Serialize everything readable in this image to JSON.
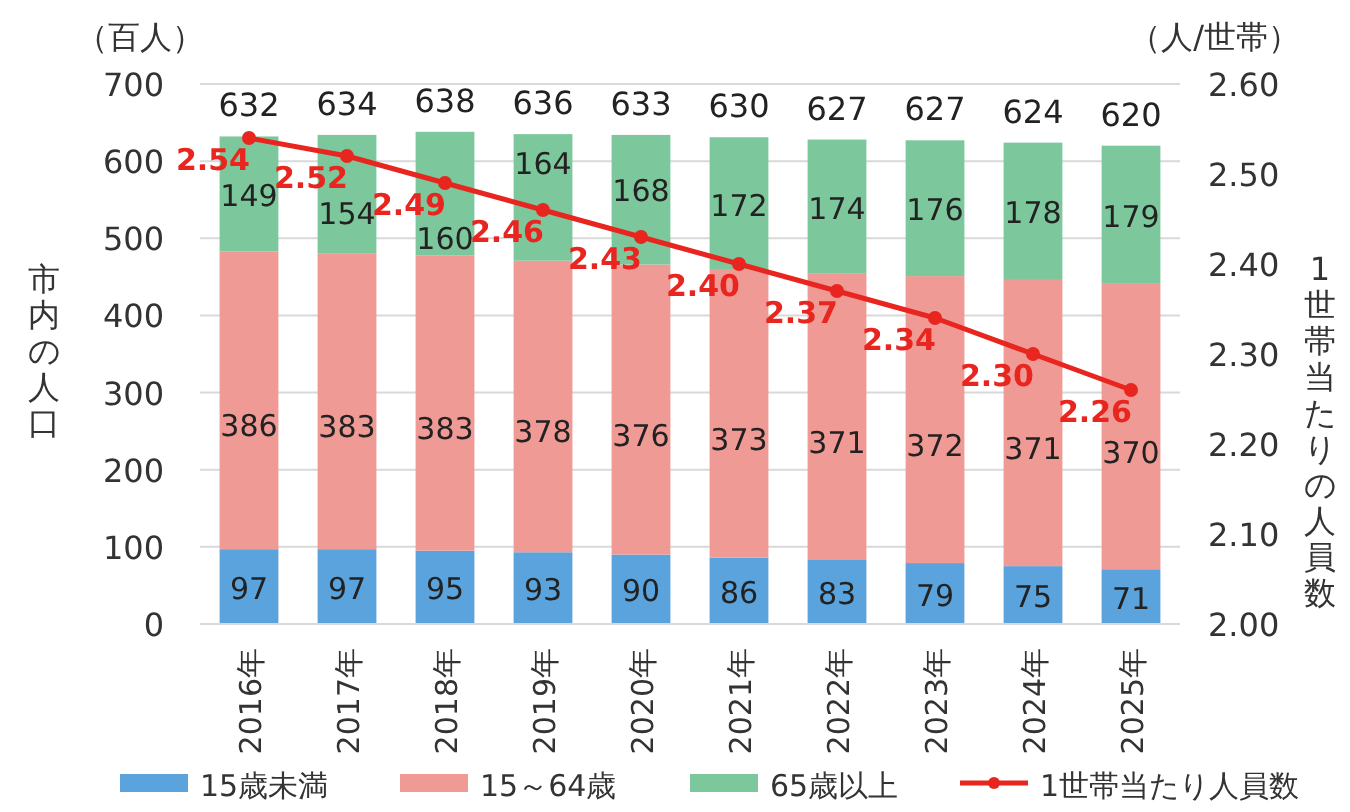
{
  "chart_data": {
    "type": "bar",
    "stacked": true,
    "ylabel": "市内の人口",
    "y2label": "1世帯当たりの人員数",
    "annotations": [
      "（百人）",
      "（人/世帯）"
    ],
    "categories": [
      "2016年",
      "2017年",
      "2018年",
      "2019年",
      "2020年",
      "2021年",
      "2022年",
      "2023年",
      "2024年",
      "2025年"
    ],
    "series": [
      {
        "name": "15歳未満",
        "color": "#5ba3dc",
        "values": [
          97,
          97,
          95,
          93,
          90,
          86,
          83,
          79,
          75,
          71
        ]
      },
      {
        "name": "15～64歳",
        "color": "#f09a95",
        "values": [
          386,
          383,
          383,
          378,
          376,
          373,
          371,
          372,
          371,
          370
        ]
      },
      {
        "name": "65歳以上",
        "color": "#7cc79b",
        "values": [
          149,
          154,
          160,
          164,
          168,
          172,
          174,
          176,
          178,
          179
        ]
      },
      {
        "name": "1世帯当たり人員数",
        "type": "line",
        "axis": "y2",
        "color": "#e8251f",
        "marker": "circle",
        "values": [
          2.54,
          2.52,
          2.49,
          2.46,
          2.43,
          2.4,
          2.37,
          2.34,
          2.3,
          2.26
        ],
        "value_labels": [
          "2.54",
          "2.52",
          "2.49",
          "2.46",
          "2.43",
          "2.40",
          "2.37",
          "2.34",
          "2.30",
          "2.26"
        ]
      }
    ],
    "totals": [
      "632",
      "634",
      "638",
      "636",
      "633",
      "630",
      "627",
      "627",
      "624",
      "620"
    ],
    "data_labels": true,
    "ylim": [
      0,
      700
    ],
    "yticks": [
      0,
      100,
      200,
      300,
      400,
      500,
      600,
      700
    ],
    "y2lim": [
      2.0,
      2.6
    ],
    "y2ticks": [
      {
        "value": 2.0,
        "label": "2.00"
      },
      {
        "value": 2.1,
        "label": "2.10"
      },
      {
        "value": 2.2,
        "label": "2.20"
      },
      {
        "value": 2.3,
        "label": "2.30"
      },
      {
        "value": 2.4,
        "label": "2.40"
      },
      {
        "value": 2.5,
        "label": "2.50"
      },
      {
        "value": 2.6,
        "label": "2.60"
      }
    ],
    "grid": "y",
    "legend": "bottom"
  }
}
